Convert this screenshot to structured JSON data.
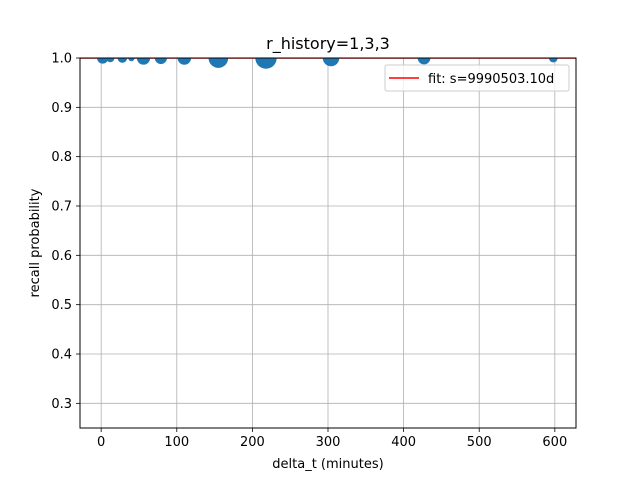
{
  "chart_data": {
    "type": "scatter",
    "title": "r_history=1,3,3",
    "xlabel": "delta_t (minutes)",
    "ylabel": "recall probability",
    "xlim": [
      -28,
      628
    ],
    "ylim": [
      0.25,
      1.0
    ],
    "xticks": [
      0,
      100,
      200,
      300,
      400,
      500,
      600
    ],
    "yticks": [
      0.3,
      0.4,
      0.5,
      0.6,
      0.7,
      0.8,
      0.9,
      1.0
    ],
    "xtick_labels": [
      "0",
      "100",
      "200",
      "300",
      "400",
      "500",
      "600"
    ],
    "ytick_labels": [
      "0.3",
      "0.4",
      "0.5",
      "0.6",
      "0.7",
      "0.8",
      "0.9",
      "1.0"
    ],
    "grid": true,
    "legend_position": "upper right",
    "series": [
      {
        "kind": "scatter",
        "color": "#1f77b4",
        "points": [
          {
            "x": 2,
            "y": 1.0,
            "weight": 1.8
          },
          {
            "x": 12,
            "y": 1.0,
            "weight": 1.0
          },
          {
            "x": 28,
            "y": 1.0,
            "weight": 1.3
          },
          {
            "x": 40,
            "y": 1.0,
            "weight": 0.6
          },
          {
            "x": 56,
            "y": 1.0,
            "weight": 2.5
          },
          {
            "x": 79,
            "y": 1.0,
            "weight": 2.1
          },
          {
            "x": 110,
            "y": 1.0,
            "weight": 2.6
          },
          {
            "x": 155,
            "y": 1.0,
            "weight": 5.5
          },
          {
            "x": 218,
            "y": 1.0,
            "weight": 6.5
          },
          {
            "x": 304,
            "y": 1.0,
            "weight": 3.9
          },
          {
            "x": 427,
            "y": 1.0,
            "weight": 2.3
          },
          {
            "x": 598,
            "y": 1.0,
            "weight": 1.1
          }
        ]
      },
      {
        "kind": "line",
        "name": "fit: s=9990503.10d",
        "color": "#ff0000",
        "x": [
          -28,
          628
        ],
        "y": [
          1.0,
          1.0
        ]
      }
    ]
  }
}
